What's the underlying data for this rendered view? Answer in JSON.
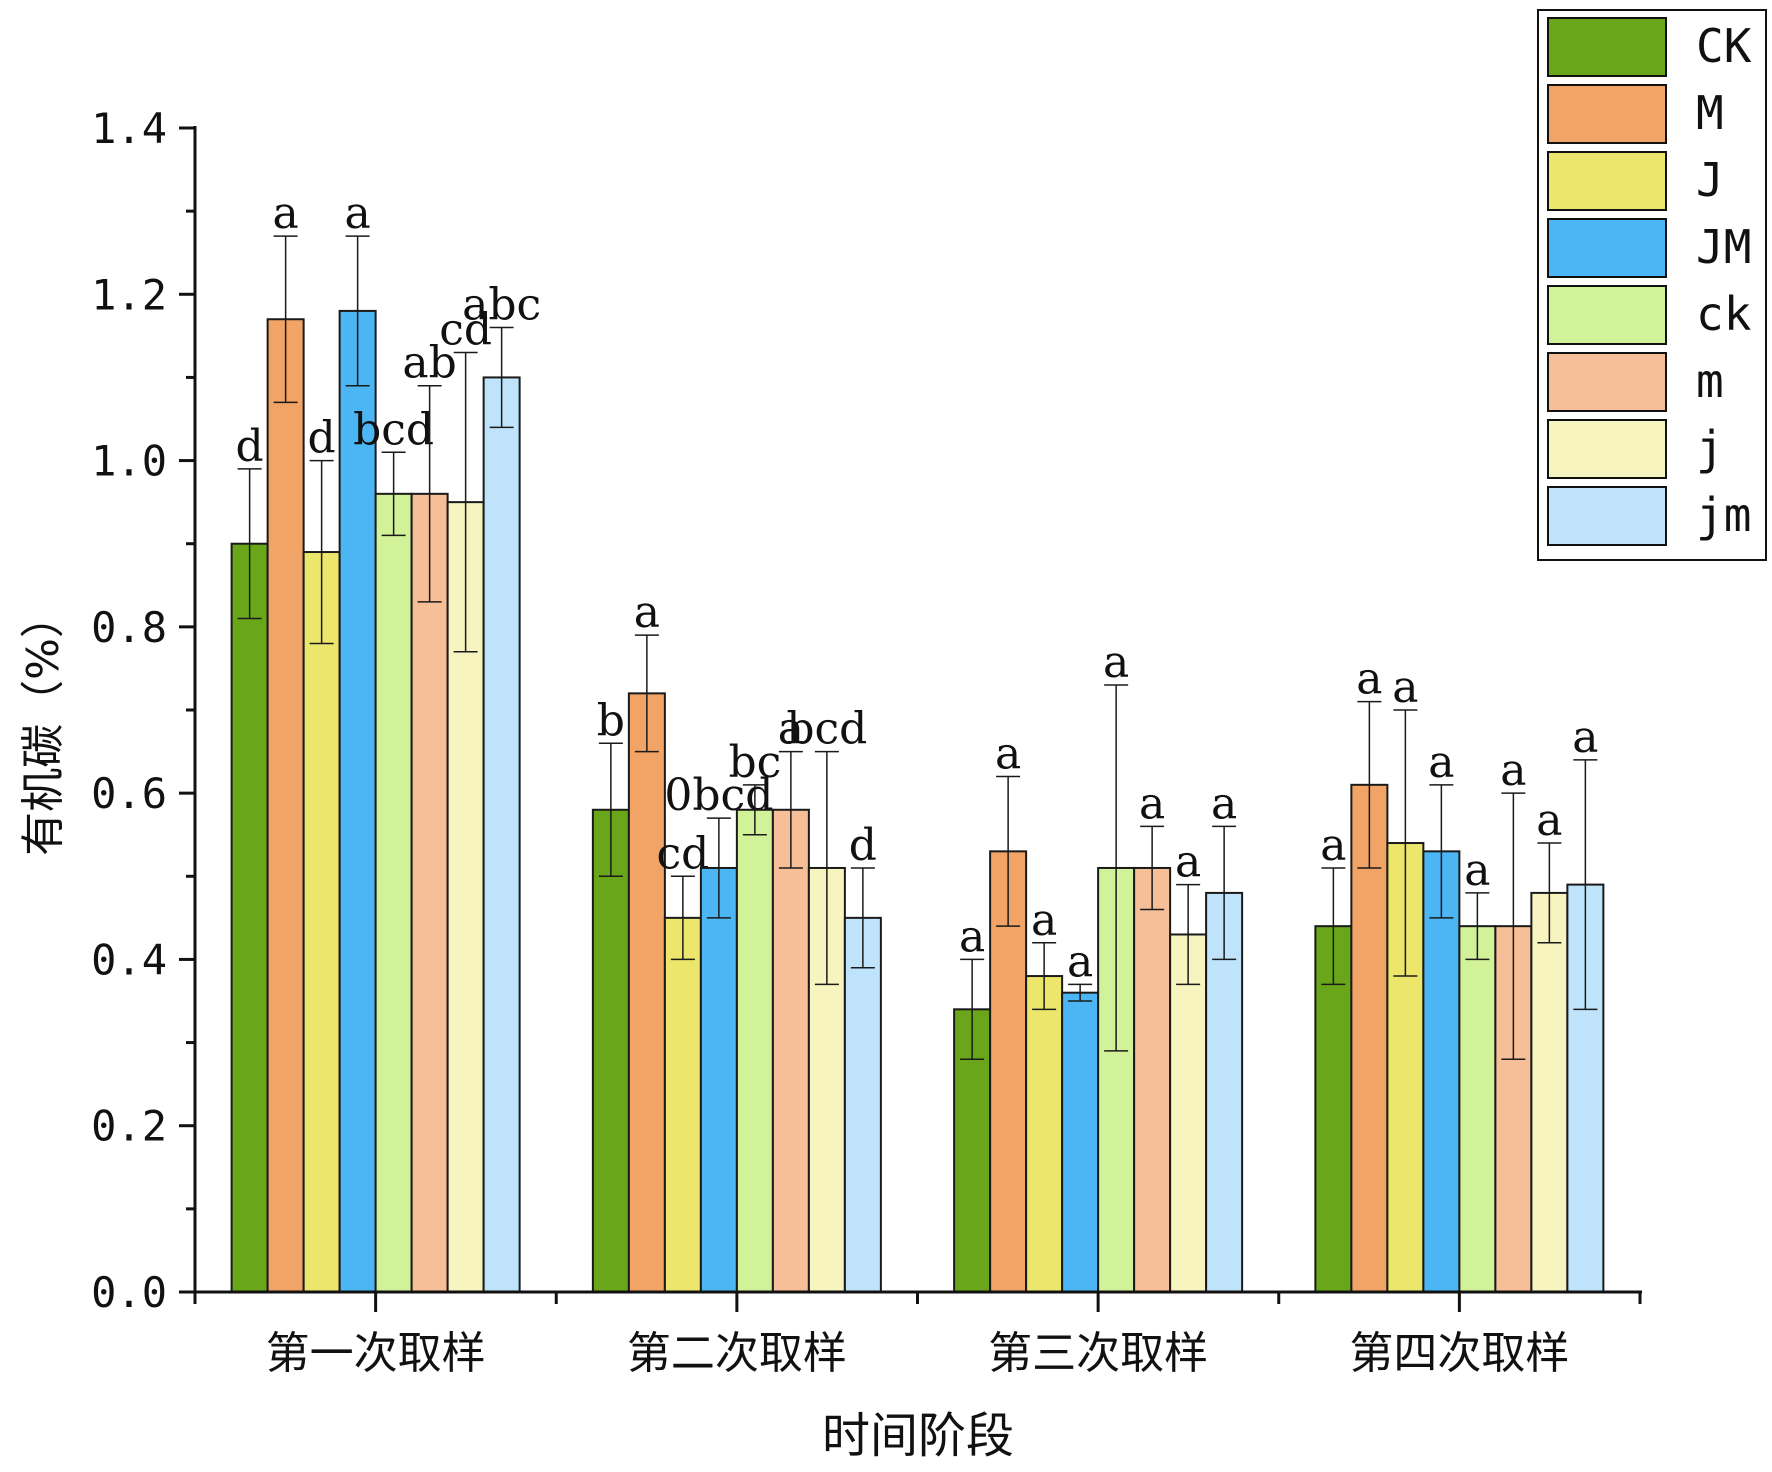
{
  "chart_data": {
    "type": "bar",
    "title": "",
    "xlabel": "时间阶段",
    "ylabel": "有机碳（%）",
    "ylim": [
      0,
      1.4
    ],
    "yticks": [
      "0.0",
      "0.2",
      "0.4",
      "0.6",
      "0.8",
      "1.0",
      "1.2",
      "1.4"
    ],
    "categories": [
      "第一次取样",
      "第二次取样",
      "第三次取样",
      "第四次取样"
    ],
    "legend_position": "top-right",
    "series": [
      {
        "name": "CK",
        "color": "#6aa61a",
        "values": [
          0.9,
          0.58,
          0.34,
          0.44
        ],
        "errors": [
          0.09,
          0.08,
          0.06,
          0.07
        ],
        "letters": [
          "d",
          "b",
          "a",
          "a"
        ]
      },
      {
        "name": "M",
        "color": "#f2a466",
        "values": [
          1.17,
          0.72,
          0.53,
          0.61
        ],
        "errors": [
          0.1,
          0.07,
          0.09,
          0.1
        ],
        "letters": [
          "a",
          "a",
          "a",
          "a"
        ]
      },
      {
        "name": "J",
        "color": "#ece66c",
        "values": [
          0.89,
          0.45,
          0.38,
          0.54
        ],
        "errors": [
          0.11,
          0.05,
          0.04,
          0.16
        ],
        "letters": [
          "d",
          "cd",
          "a",
          "a"
        ]
      },
      {
        "name": "JM",
        "color": "#4cb6f5",
        "values": [
          1.18,
          0.51,
          0.36,
          0.53
        ],
        "errors": [
          0.09,
          0.06,
          0.01,
          0.08
        ],
        "letters": [
          "a",
          "0bcd",
          "a",
          "a"
        ]
      },
      {
        "name": "ck",
        "color": "#d2f29a",
        "values": [
          0.96,
          0.58,
          0.51,
          0.44
        ],
        "errors": [
          0.05,
          0.03,
          0.22,
          0.04
        ],
        "letters": [
          "bcd",
          "bc",
          "a",
          "a"
        ]
      },
      {
        "name": "m",
        "color": "#f6bf97",
        "values": [
          0.96,
          0.58,
          0.51,
          0.44
        ],
        "errors": [
          0.13,
          0.07,
          0.05,
          0.16
        ],
        "letters": [
          "ab",
          "a",
          "a",
          "a"
        ]
      },
      {
        "name": "j",
        "color": "#f7f4c0",
        "values": [
          0.95,
          0.51,
          0.43,
          0.48
        ],
        "errors": [
          0.18,
          0.14,
          0.06,
          0.06
        ],
        "letters": [
          "cd",
          "bcd",
          "a",
          "a"
        ]
      },
      {
        "name": "jm",
        "color": "#bfe3fb",
        "values": [
          1.1,
          0.45,
          0.48,
          0.49
        ],
        "errors": [
          0.06,
          0.06,
          0.08,
          0.15
        ],
        "letters": [
          "abc",
          "d",
          "a",
          "a"
        ]
      }
    ]
  }
}
